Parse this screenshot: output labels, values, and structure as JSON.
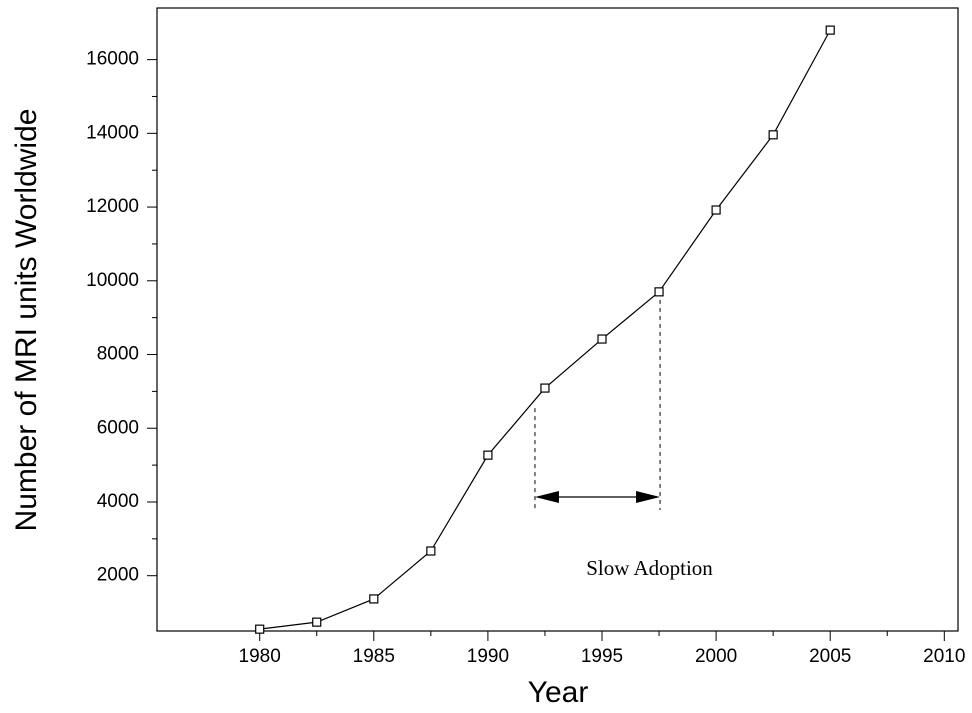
{
  "chart_data": {
    "type": "line",
    "x_label": "Year",
    "y_label": "Number of MRI units Worldwide",
    "annotation": "Slow Adoption",
    "x": [
      1980,
      1982.5,
      1985,
      1987.5,
      1990,
      1992.5,
      1995,
      1997.5,
      2000,
      2002.5,
      2005
    ],
    "values": [
      550,
      740,
      1370,
      2670,
      5270,
      7090,
      8420,
      9700,
      11920,
      13960,
      16800
    ],
    "color": "#000000",
    "marker": "square",
    "xlim": [
      1975.5,
      2010.6
    ],
    "ylim": [
      500,
      17400
    ],
    "xticks": [
      1980,
      1985,
      1990,
      1995,
      2000,
      2005,
      2010
    ],
    "yticks": [
      2000,
      4000,
      6000,
      8000,
      10000,
      12000,
      14000,
      16000
    ],
    "grid": false
  }
}
